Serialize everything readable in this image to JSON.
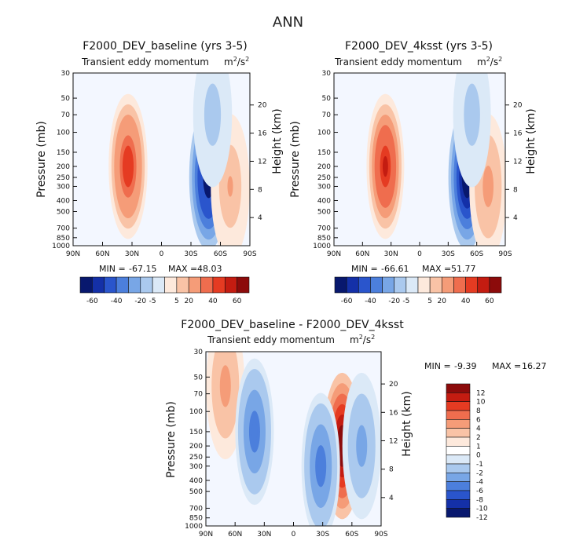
{
  "page_title": "ANN",
  "colors": {
    "pos": [
      "#fde9dc",
      "#f9c3a6",
      "#f59c78",
      "#ef6d4e",
      "#e53b22",
      "#c41c11",
      "#8c0b0b"
    ],
    "neg": [
      "#dbe9f7",
      "#aac9ee",
      "#78a6e6",
      "#4c7fdc",
      "#2a55cc",
      "#1430a8",
      "#08186e"
    ],
    "neutral": "#f3f7ff"
  },
  "chart_data": [
    {
      "type": "contour",
      "title": "F2000_DEV_baseline (yrs 3-5)",
      "subtitle": "Transient eddy momentum",
      "units_base": "m",
      "units_sup1": "2",
      "units_mid": "/s",
      "units_sup2": "2",
      "xlabel": "",
      "ylabel": "Pressure (mb)",
      "ylabel_right": "Height (km)",
      "x_ticks": [
        "90N",
        "60N",
        "30N",
        "0",
        "30S",
        "60S",
        "90S"
      ],
      "y_ticks": [
        "30",
        "50",
        "70",
        "100",
        "150",
        "200",
        "250",
        "300",
        "400",
        "500",
        "700",
        "850",
        "1000"
      ],
      "height_ticks": [
        "20",
        "16",
        "12",
        "8",
        "4"
      ],
      "min_label": "MIN =",
      "min_value": "-67.15",
      "max_label": "MAX =",
      "max_value": "48.03",
      "colorbar_labels": [
        "-60",
        "-40",
        "-20",
        "-5",
        "5",
        "20",
        "40",
        "60"
      ],
      "features": [
        {
          "name": "nh-jet",
          "lat": 34,
          "p": 200,
          "value": 45
        },
        {
          "name": "sh-jet",
          "lat": -48,
          "p": 250,
          "value": -67
        },
        {
          "name": "polar-south",
          "lat": -70,
          "p": 300,
          "value": 20
        },
        {
          "name": "upper-sh",
          "lat": -52,
          "p": 70,
          "value": -15
        }
      ]
    },
    {
      "type": "contour",
      "title": "F2000_DEV_4ksst (yrs 3-5)",
      "subtitle": "Transient eddy momentum",
      "units_base": "m",
      "units_sup1": "2",
      "units_mid": "/s",
      "units_sup2": "2",
      "xlabel": "",
      "ylabel": "Pressure (mb)",
      "ylabel_right": "Height (km)",
      "x_ticks": [
        "90N",
        "60N",
        "30N",
        "0",
        "30S",
        "60S",
        "90S"
      ],
      "y_ticks": [
        "30",
        "50",
        "70",
        "100",
        "150",
        "200",
        "250",
        "300",
        "400",
        "500",
        "700",
        "850",
        "1000"
      ],
      "height_ticks": [
        "20",
        "16",
        "12",
        "8",
        "4"
      ],
      "min_label": "MIN =",
      "min_value": "-66.61",
      "max_label": "MAX =",
      "max_value": "51.77",
      "colorbar_labels": [
        "-60",
        "-40",
        "-20",
        "-5",
        "5",
        "20",
        "40",
        "60"
      ],
      "features": [
        {
          "name": "nh-jet",
          "lat": 36,
          "p": 200,
          "value": 50
        },
        {
          "name": "sh-jet",
          "lat": -50,
          "p": 250,
          "value": -66
        },
        {
          "name": "polar-south",
          "lat": -72,
          "p": 300,
          "value": 22
        },
        {
          "name": "upper-sh",
          "lat": -55,
          "p": 70,
          "value": -15
        }
      ]
    },
    {
      "type": "contour",
      "title": "F2000_DEV_baseline - F2000_DEV_4ksst",
      "subtitle": "Transient eddy momentum",
      "units_base": "m",
      "units_sup1": "2",
      "units_mid": "/s",
      "units_sup2": "2",
      "xlabel": "",
      "ylabel": "Pressure (mb)",
      "ylabel_right": "Height (km)",
      "x_ticks": [
        "90N",
        "60N",
        "30N",
        "0",
        "30S",
        "60S",
        "90S"
      ],
      "y_ticks": [
        "30",
        "50",
        "70",
        "100",
        "150",
        "200",
        "250",
        "300",
        "400",
        "500",
        "700",
        "850",
        "1000"
      ],
      "height_ticks": [
        "20",
        "16",
        "12",
        "8",
        "4"
      ],
      "min_label": "MIN =",
      "min_value": "-9.39",
      "max_label": "MAX =",
      "max_value": "16.27",
      "colorbar_labels": [
        "12",
        "10",
        "8",
        "6",
        "4",
        "2",
        "1",
        "0",
        "-1",
        "-2",
        "-4",
        "-6",
        "-8",
        "-10",
        "-12"
      ],
      "features": [
        {
          "name": "upper-nh",
          "lat": 70,
          "p": 60,
          "value": 6
        },
        {
          "name": "nh-neg",
          "lat": 40,
          "p": 150,
          "value": -8
        },
        {
          "name": "sh-pos",
          "lat": -50,
          "p": 200,
          "value": 16
        },
        {
          "name": "sh-neg",
          "lat": -28,
          "p": 300,
          "value": -9
        },
        {
          "name": "polar-neg",
          "lat": -70,
          "p": 200,
          "value": -6
        }
      ]
    }
  ]
}
